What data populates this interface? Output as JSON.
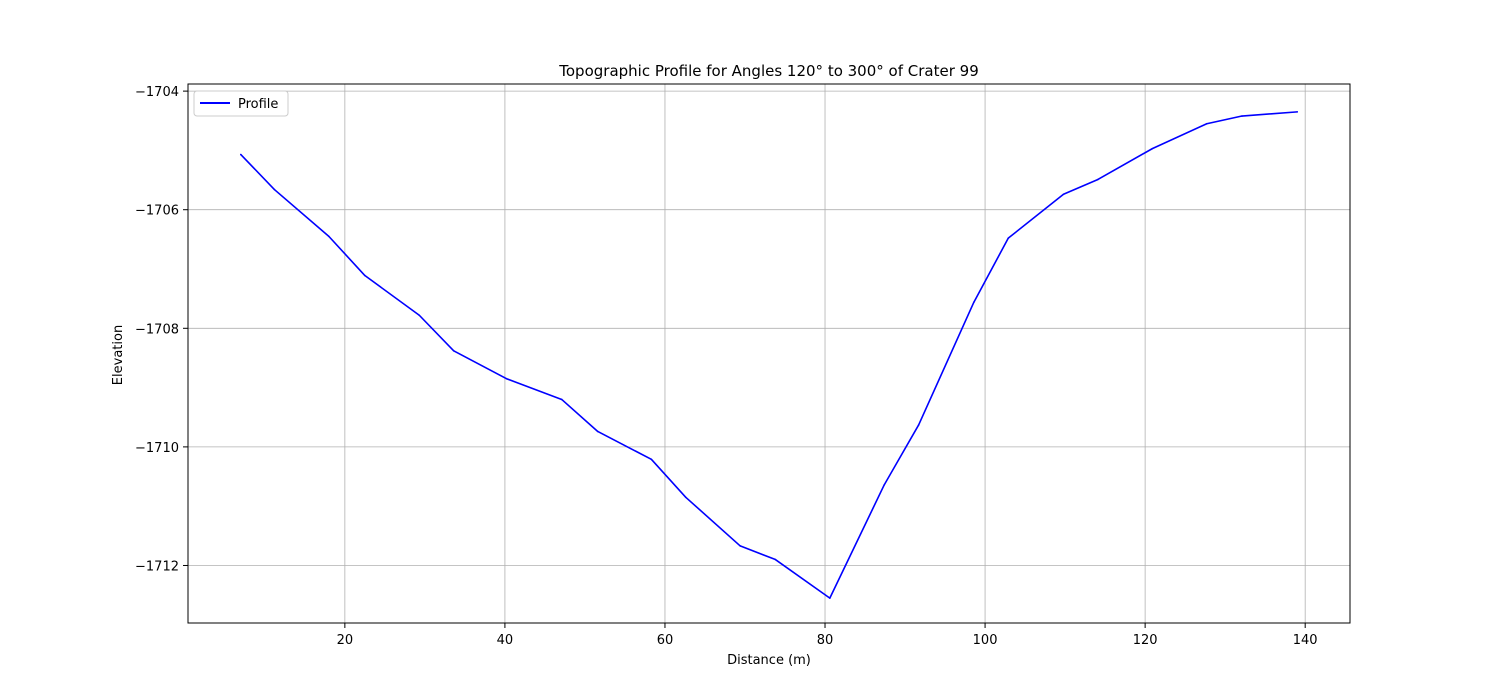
{
  "chart_data": {
    "type": "line",
    "title": "Topographic Profile for Angles 120° to 300° of Crater 99",
    "xlabel": "Distance (m)",
    "ylabel": "Elevation",
    "xlim": [
      0.4,
      145.6
    ],
    "ylim": [
      -1712.97,
      -1703.88
    ],
    "xticks": [
      20,
      40,
      60,
      80,
      100,
      120,
      140
    ],
    "yticks": [
      -1712,
      -1710,
      -1708,
      -1706,
      -1704
    ],
    "xtick_labels": [
      "20",
      "40",
      "60",
      "80",
      "100",
      "120",
      "140"
    ],
    "ytick_labels": [
      "−1712",
      "−1710",
      "−1708",
      "−1706",
      "−1704"
    ],
    "grid": true,
    "legend": {
      "position": "top-left",
      "entries": [
        "Profile"
      ]
    },
    "series": [
      {
        "name": "Profile",
        "color": "#0000ff",
        "x": [
          7.0,
          11.2,
          18.0,
          22.5,
          29.3,
          33.6,
          40.2,
          47.1,
          51.6,
          58.3,
          62.6,
          69.4,
          73.8,
          80.6,
          87.4,
          91.7,
          98.6,
          102.9,
          109.8,
          114.1,
          120.9,
          127.7,
          132.1,
          139.0
        ],
        "y": [
          -1705.07,
          -1705.66,
          -1706.45,
          -1707.11,
          -1707.78,
          -1708.38,
          -1708.85,
          -1709.2,
          -1709.74,
          -1710.21,
          -1710.85,
          -1711.67,
          -1711.9,
          -1712.55,
          -1710.64,
          -1709.63,
          -1707.56,
          -1706.48,
          -1705.74,
          -1705.49,
          -1704.97,
          -1704.55,
          -1704.42,
          -1704.35
        ]
      }
    ]
  }
}
